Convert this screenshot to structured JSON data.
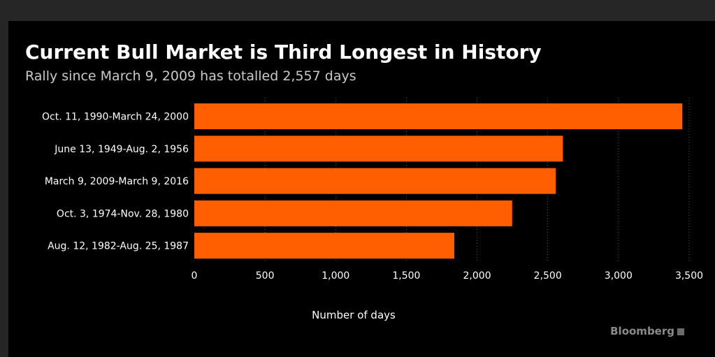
{
  "chart_data": {
    "type": "bar",
    "orientation": "horizontal",
    "title": "Current Bull Market is Third Longest in History",
    "subtitle": "Rally since March 9, 2009 has totalled 2,557 days",
    "categories": [
      "Oct. 11, 1990-March 24, 2000",
      "June 13, 1949-Aug. 2, 1956",
      "March 9, 2009-March 9, 2016",
      "Oct. 3, 1974-Nov. 28, 1980",
      "Aug. 12, 1982-Aug. 25, 1987"
    ],
    "values": [
      3452,
      2607,
      2557,
      2248,
      1839
    ],
    "xlabel": "Number of days",
    "ylabel": "",
    "xlim": [
      0,
      3500
    ],
    "xticks": [
      0,
      500,
      1000,
      1500,
      2000,
      2500,
      3000,
      3500
    ],
    "xtick_labels": [
      "0",
      "500",
      "1,000",
      "1,500",
      "2,000",
      "2,500",
      "3,000",
      "3,500"
    ],
    "grid": "vertical dotted",
    "bar_color": "#ff5f00",
    "background": "#000000"
  },
  "source": "Bloomberg"
}
